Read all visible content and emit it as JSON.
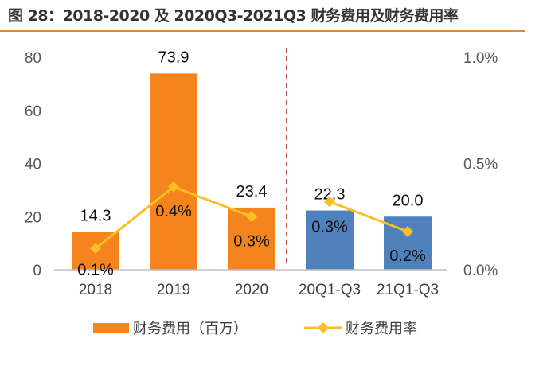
{
  "title": "图 28：2018-2020 及 2020Q3-2021Q3 财务费用及财务费用率",
  "chart_data": {
    "type": "bar+line",
    "categories": [
      "2018",
      "2019",
      "2020",
      "20Q1-Q3",
      "21Q1-Q3"
    ],
    "series": [
      {
        "name": "财务费用（百万）",
        "type": "bar",
        "axis": "left",
        "values": [
          14.3,
          73.9,
          23.4,
          22.3,
          20.0
        ],
        "labels": [
          "14.3",
          "73.9",
          "23.4",
          "22.3",
          "20.0"
        ],
        "colors": [
          "#f5841f",
          "#f5841f",
          "#f5841f",
          "#4f81bd",
          "#4f81bd"
        ]
      },
      {
        "name": "财务费用率",
        "type": "line",
        "axis": "right",
        "values": [
          0.1,
          0.39,
          0.25,
          0.32,
          0.18
        ],
        "labels": [
          "0.1%",
          "0.4%",
          "0.3%",
          "0.3%",
          "0.2%"
        ],
        "color": "#fbbf26",
        "marker": "diamond",
        "segments": [
          [
            0,
            2
          ],
          [
            3,
            4
          ]
        ]
      }
    ],
    "left_axis": {
      "ylim": [
        0,
        80
      ],
      "ticks": [
        "0",
        "20",
        "40",
        "60",
        "80"
      ]
    },
    "right_axis": {
      "ylim": [
        0,
        1.0
      ],
      "ticks": [
        "0.0%",
        "0.5%",
        "1.0%"
      ]
    },
    "divider": {
      "after_category": 2,
      "style": "dashed",
      "color": "#c0504d"
    },
    "grid": false,
    "legend": "bottom"
  }
}
